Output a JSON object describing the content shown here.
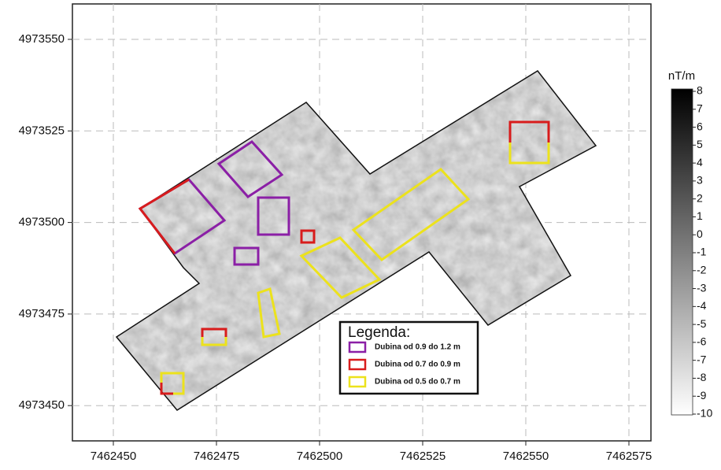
{
  "x_axis": {
    "ticks": [
      "7462450",
      "7462475",
      "7462500",
      "7462525",
      "7462550",
      "7462575"
    ]
  },
  "y_axis": {
    "ticks": [
      "4973550",
      "4973525",
      "4973500",
      "4973475",
      "4973450"
    ]
  },
  "colorbar": {
    "unit": "nT/m",
    "ticks": [
      "8",
      "7",
      "6",
      "5",
      "4",
      "3",
      "2",
      "1",
      "0",
      "-1",
      "-2",
      "-3",
      "-4",
      "-5",
      "-6",
      "-7",
      "-8",
      "-9",
      "-10"
    ]
  },
  "legend": {
    "title": "Legenda:",
    "items": [
      {
        "label": "Dubina od 0.9 do 1.2 m",
        "color": "#8b1fa6"
      },
      {
        "label": "Dubina od 0.7 do 0.9 m",
        "color": "#d81c1c"
      },
      {
        "label": "Dubina od 0.5 do 0.7 m",
        "color": "#ece21c"
      }
    ]
  }
}
